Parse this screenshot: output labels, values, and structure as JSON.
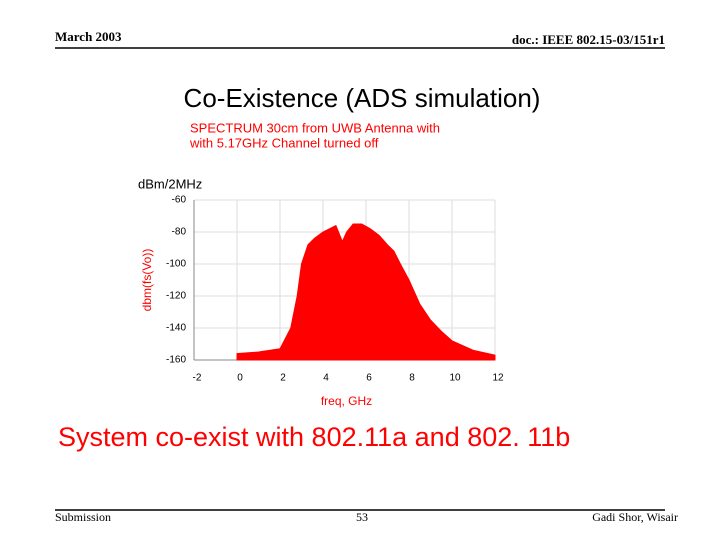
{
  "header": {
    "date": "March 2003",
    "doc": "doc.: IEEE 802.15-03/151r1"
  },
  "slide_title": "Co-Existence (ADS simulation)",
  "chart_data": {
    "type": "area",
    "title": [
      "SPECTRUM 30cm from UWB Antenna with",
      "with 5.17GHz Channel turned off"
    ],
    "y_unit": "dBm/2MHz",
    "y_label": "dbm(fs(Vo))",
    "x_label": "freq, GHz",
    "x": [
      0,
      1,
      2,
      2.5,
      2.8,
      3,
      3.3,
      3.6,
      4,
      4.3,
      4.6,
      4.9,
      5.1,
      5.4,
      5.8,
      6.2,
      6.6,
      7,
      7.3,
      7.6,
      8,
      8.5,
      9,
      9.5,
      10,
      11,
      12
    ],
    "values": [
      -156,
      -155,
      -153,
      -140,
      -120,
      -100,
      -88,
      -84,
      -80,
      -78,
      -76,
      -86,
      -80,
      -75,
      -75,
      -78,
      -82,
      -88,
      -92,
      -100,
      -110,
      -125,
      -135,
      -142,
      -148,
      -154,
      -157
    ],
    "color": "#ff0000",
    "xlim": [
      -2,
      12
    ],
    "xticks": [
      -2,
      0,
      2,
      4,
      6,
      8,
      10,
      12
    ],
    "ylim": [
      -160,
      -60
    ],
    "yticks": [
      -60,
      -80,
      -100,
      -120,
      -140,
      -160
    ],
    "grid": true
  },
  "caption": "System co-exist with 802.11a and 802. 11b",
  "footer": {
    "left": "Submission",
    "page": "53",
    "right": "Gadi Shor, Wisair"
  }
}
